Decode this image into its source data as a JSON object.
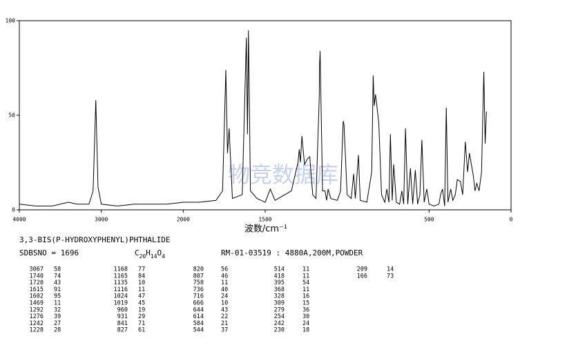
{
  "chart_data": {
    "type": "line",
    "xlim": [
      4000,
      0
    ],
    "x_scale_break": 2000,
    "ylim": [
      0,
      100
    ],
    "xticks": [
      4000,
      3000,
      2000,
      1500,
      500,
      0
    ],
    "yticks": [
      0,
      50,
      100
    ],
    "xlabel": "波数/cm⁻¹",
    "watermark": "物竞数据库",
    "series": [
      {
        "color": "#000000",
        "x": [
          4000,
          3800,
          3600,
          3400,
          3300,
          3150,
          3100,
          3067,
          3040,
          3000,
          2800,
          2600,
          2400,
          2200,
          2000,
          1900,
          1800,
          1760,
          1740,
          1730,
          1720,
          1700,
          1640,
          1615,
          1608,
          1602,
          1590,
          1550,
          1500,
          1469,
          1440,
          1400,
          1340,
          1300,
          1292,
          1285,
          1276,
          1260,
          1242,
          1228,
          1210,
          1190,
          1170,
          1168,
          1165,
          1150,
          1135,
          1125,
          1116,
          1100,
          1060,
          1040,
          1024,
          1019,
          1000,
          975,
          960,
          950,
          931,
          920,
          880,
          850,
          841,
          835,
          827,
          820,
          807,
          790,
          770,
          758,
          745,
          736,
          725,
          716,
          700,
          680,
          666,
          655,
          644,
          630,
          614,
          600,
          584,
          570,
          556,
          544,
          530,
          514,
          500,
          470,
          440,
          430,
          418,
          405,
          395,
          385,
          368,
          355,
          340,
          328,
          309,
          295,
          279,
          265,
          254,
          242,
          230,
          220,
          209,
          195,
          180,
          166,
          158,
          150
        ],
        "values": [
          3,
          2,
          2,
          4,
          3,
          3,
          10,
          58,
          12,
          3,
          2,
          3,
          3,
          3,
          4,
          4,
          5,
          10,
          74,
          30,
          43,
          6,
          8,
          91,
          40,
          95,
          10,
          6,
          4,
          11,
          5,
          7,
          10,
          25,
          32,
          25,
          39,
          24,
          27,
          28,
          8,
          6,
          60,
          77,
          84,
          10,
          10,
          5,
          11,
          6,
          5,
          10,
          47,
          45,
          8,
          6,
          19,
          6,
          29,
          5,
          4,
          20,
          71,
          55,
          61,
          56,
          46,
          8,
          4,
          11,
          4,
          40,
          5,
          24,
          4,
          3,
          10,
          3,
          43,
          3,
          22,
          3,
          21,
          3,
          8,
          37,
          4,
          11,
          3,
          2,
          3,
          8,
          11,
          2,
          54,
          4,
          11,
          5,
          8,
          16,
          15,
          8,
          36,
          20,
          30,
          24,
          18,
          10,
          14,
          10,
          20,
          73,
          35,
          52
        ]
      }
    ]
  },
  "compound": "3,3-BIS(P-HYDROXYPHENYL)PHTHALIDE",
  "sdbs_no": "SDBSNO = 1696",
  "formula": [
    "C",
    "20",
    "H",
    "14",
    "O",
    "4"
  ],
  "conditions": "RM-01-03519 : 4880A,200M,POWDER",
  "peak_table": [
    [
      3067,
      58
    ],
    [
      1740,
      74
    ],
    [
      1720,
      43
    ],
    [
      1615,
      91
    ],
    [
      1602,
      95
    ],
    [
      1469,
      11
    ],
    [
      1292,
      32
    ],
    [
      1276,
      39
    ],
    [
      1242,
      27
    ],
    [
      1228,
      28
    ],
    [
      1168,
      77
    ],
    [
      1165,
      84
    ],
    [
      1135,
      10
    ],
    [
      1116,
      11
    ],
    [
      1024,
      47
    ],
    [
      1019,
      45
    ],
    [
      960,
      19
    ],
    [
      931,
      29
    ],
    [
      841,
      71
    ],
    [
      827,
      61
    ],
    [
      820,
      56
    ],
    [
      807,
      46
    ],
    [
      758,
      11
    ],
    [
      736,
      40
    ],
    [
      716,
      24
    ],
    [
      666,
      10
    ],
    [
      644,
      43
    ],
    [
      614,
      22
    ],
    [
      584,
      21
    ],
    [
      544,
      37
    ],
    [
      514,
      11
    ],
    [
      418,
      11
    ],
    [
      395,
      54
    ],
    [
      368,
      11
    ],
    [
      328,
      16
    ],
    [
      309,
      15
    ],
    [
      279,
      36
    ],
    [
      254,
      30
    ],
    [
      242,
      24
    ],
    [
      230,
      18
    ],
    [
      209,
      14
    ],
    [
      166,
      73
    ]
  ]
}
